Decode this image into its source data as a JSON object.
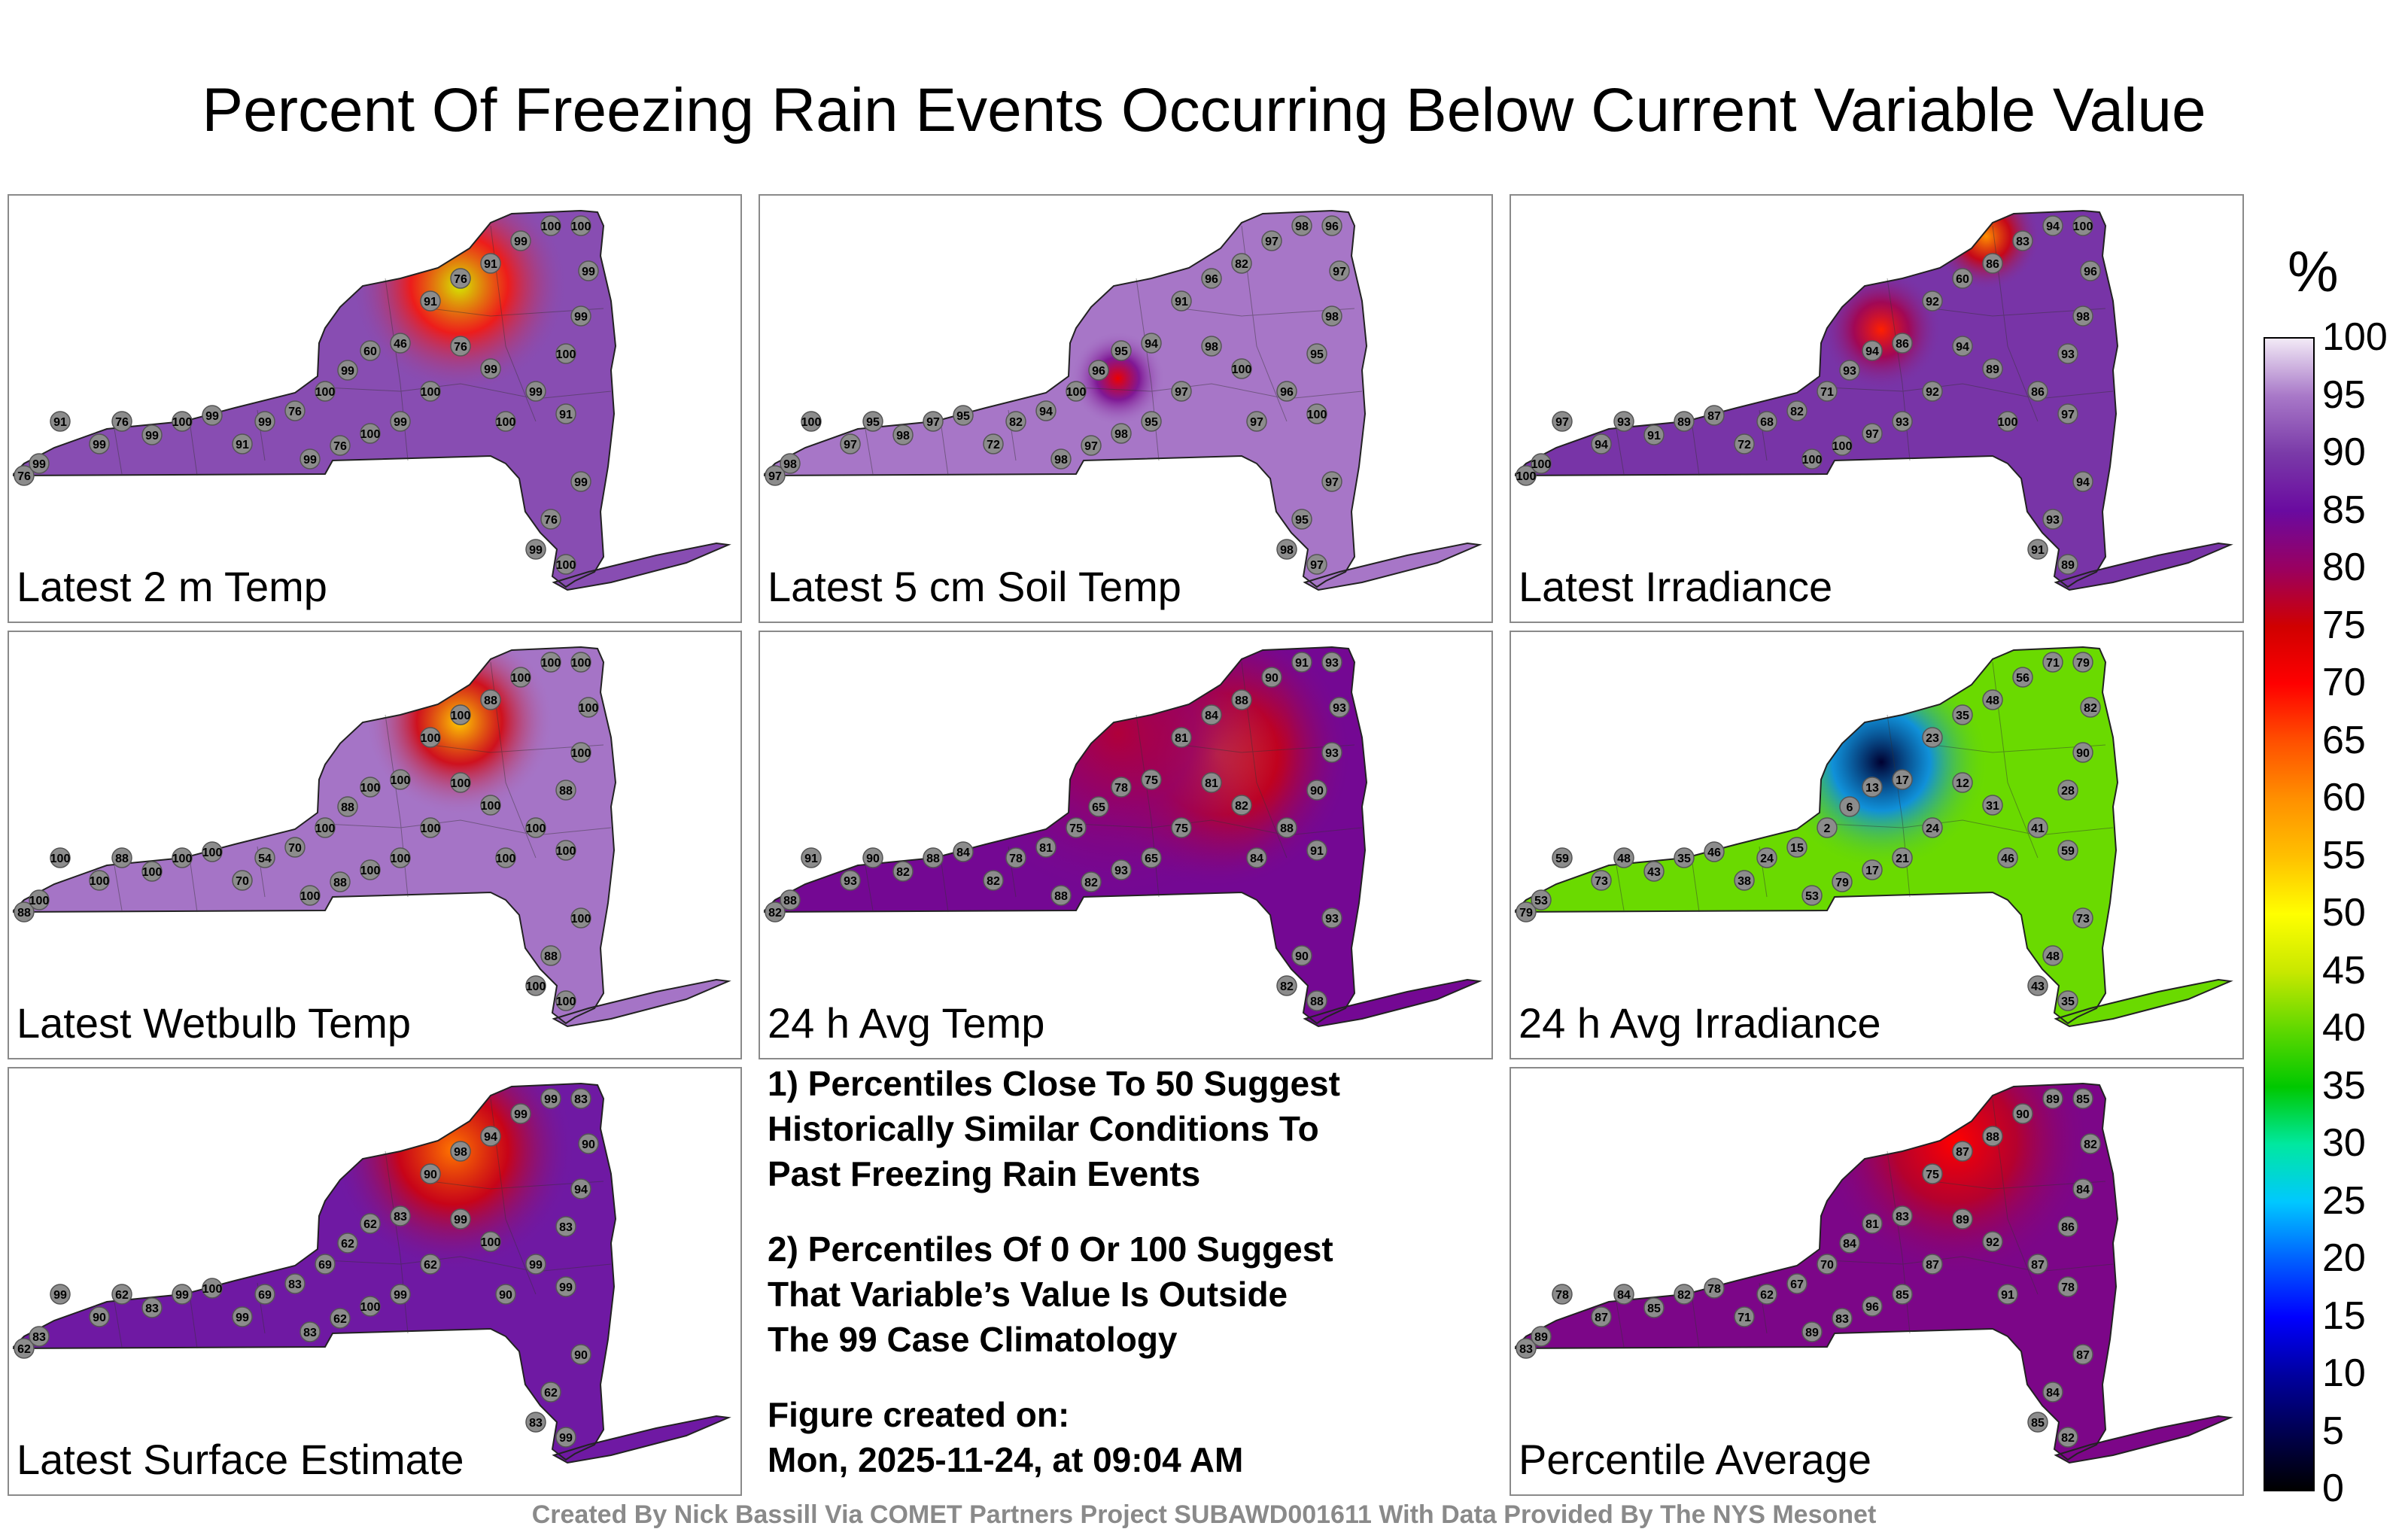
{
  "title": "Percent Of Freezing Rain Events Occurring Below Current Variable Value",
  "colorbar": {
    "unit": "%",
    "ticks": [
      "100",
      "95",
      "90",
      "85",
      "80",
      "75",
      "70",
      "65",
      "60",
      "55",
      "50",
      "45",
      "40",
      "35",
      "30",
      "25",
      "20",
      "15",
      "10",
      "5",
      "0"
    ]
  },
  "panels": [
    {
      "label": "Latest 2 m Temp",
      "stations": [
        76,
        99,
        91,
        99,
        76,
        99,
        100,
        99,
        91,
        99,
        76,
        100,
        99,
        60,
        46,
        91,
        76,
        91,
        99,
        100,
        100,
        99,
        99,
        100,
        99,
        100,
        99,
        76,
        100,
        99,
        100
      ],
      "hotspots": [
        {
          "value": 46,
          "fx": 0.73,
          "fy": 0.22,
          "r": 0.16
        },
        {
          "value": 76,
          "fx": 0.05,
          "fy": 0.88,
          "r": 0.07
        },
        {
          "value": 76,
          "fx": 0.28,
          "fy": 0.86,
          "r": 0.06
        }
      ]
    },
    {
      "label": "Latest 5 cm Soil Temp",
      "stations": [
        97,
        98,
        100,
        97,
        95,
        98,
        97,
        95,
        72,
        82,
        94,
        100,
        96,
        95,
        94,
        91,
        96,
        82,
        97,
        98,
        96,
        97,
        98,
        95,
        96,
        97,
        100,
        98,
        97,
        95,
        98
      ],
      "hotspots": [
        {
          "value": 72,
          "fx": 0.58,
          "fy": 0.45,
          "r": 0.07
        }
      ]
    },
    {
      "label": "Latest Irradiance",
      "stations": [
        100,
        100,
        97,
        94,
        93,
        91,
        89,
        87,
        72,
        68,
        82,
        71,
        93,
        94,
        86,
        92,
        60,
        86,
        83,
        94,
        100,
        96,
        98,
        93,
        86,
        100,
        89,
        94,
        92,
        93,
        97
      ],
      "hotspots": [
        {
          "value": 60,
          "fx": 0.77,
          "fy": 0.1,
          "r": 0.08
        },
        {
          "value": 68,
          "fx": 0.6,
          "fy": 0.33,
          "r": 0.09
        }
      ]
    },
    {
      "label": "Latest Wetbulb Temp",
      "stations": [
        88,
        100,
        100,
        100,
        88,
        100,
        100,
        100,
        70,
        54,
        70,
        100,
        88,
        100,
        100,
        100,
        100,
        88,
        100,
        100,
        100,
        100,
        100,
        88,
        100,
        100,
        100,
        100,
        100,
        100,
        100
      ],
      "hotspots": [
        {
          "value": 54,
          "fx": 0.73,
          "fy": 0.22,
          "r": 0.14
        }
      ]
    },
    {
      "label": "24 h Avg Temp",
      "stations": [
        82,
        88,
        91,
        93,
        90,
        82,
        88,
        84,
        82,
        78,
        81,
        75,
        65,
        78,
        75,
        81,
        84,
        88,
        90,
        91,
        93,
        93,
        93,
        90,
        88,
        84,
        82,
        81,
        75,
        65,
        93
      ],
      "hotspots": [
        {
          "value": 65,
          "fx": 0.74,
          "fy": 0.3,
          "r": 0.2
        },
        {
          "value": 78,
          "fx": 0.58,
          "fy": 0.25,
          "r": 0.25
        }
      ]
    },
    {
      "label": "24 h Avg Irradiance",
      "stations": [
        79,
        53,
        59,
        73,
        48,
        43,
        35,
        46,
        38,
        24,
        15,
        2,
        6,
        13,
        17,
        23,
        35,
        48,
        56,
        71,
        79,
        82,
        90,
        28,
        41,
        46,
        31,
        12,
        24,
        21,
        17
      ],
      "hotspots": [
        {
          "value": 3,
          "fx": 0.6,
          "fy": 0.32,
          "r": 0.16
        }
      ]
    },
    {
      "label": "Latest Surface Estimate",
      "stations": [
        62,
        83,
        99,
        90,
        62,
        83,
        99,
        100,
        99,
        69,
        83,
        69,
        62,
        62,
        83,
        90,
        98,
        94,
        99,
        99,
        83,
        90,
        94,
        83,
        99,
        90,
        100,
        99,
        62,
        99,
        100
      ],
      "hotspots": [
        {
          "value": 62,
          "fx": 0.72,
          "fy": 0.2,
          "r": 0.18
        },
        {
          "value": 62,
          "fx": 0.05,
          "fy": 0.9,
          "r": 0.08
        },
        {
          "value": 62,
          "fx": 0.28,
          "fy": 0.87,
          "r": 0.06
        }
      ]
    },
    {
      "label": "Percentile Average",
      "stations": [
        83,
        89,
        78,
        87,
        84,
        85,
        82,
        78,
        71,
        62,
        67,
        70,
        84,
        81,
        83,
        75,
        87,
        88,
        90,
        89,
        85,
        82,
        84,
        86,
        87,
        91,
        92,
        89,
        87,
        85,
        96
      ],
      "hotspots": [
        {
          "value": 70,
          "fx": 0.72,
          "fy": 0.18,
          "r": 0.2
        },
        {
          "value": 78,
          "fx": 0.27,
          "fy": 0.85,
          "r": 0.07
        }
      ]
    }
  ],
  "notes": {
    "line1": "1) Percentiles Close To 50 Suggest",
    "line2": "Historically Similar Conditions To",
    "line3": "Past Freezing Rain Events",
    "line4": "2) Percentiles Of 0 Or 100 Suggest",
    "line5": "That Variable’s Value Is Outside",
    "line6": "The 99 Case Climatology",
    "line7": "Figure created on:",
    "line8": "Mon, 2025-11-24, at 09:04 AM"
  },
  "credit": "Created By Nick Bassill Via COMET Partners Project SUBAWD001611 With Data Provided By The NYS Mesonet",
  "chart_data": {
    "type": "heatmap",
    "title": "Percent Of Freezing Rain Events Occurring Below Current Variable Value",
    "colorbar_label": "%",
    "colorbar_range": [
      0,
      100
    ],
    "maps": [
      "Latest 2 m Temp",
      "Latest 5 cm Soil Temp",
      "Latest Irradiance",
      "Latest Wetbulb Temp",
      "24 h Avg Temp",
      "24 h Avg Irradiance",
      "Latest Surface Estimate",
      "Percentile Average"
    ]
  }
}
